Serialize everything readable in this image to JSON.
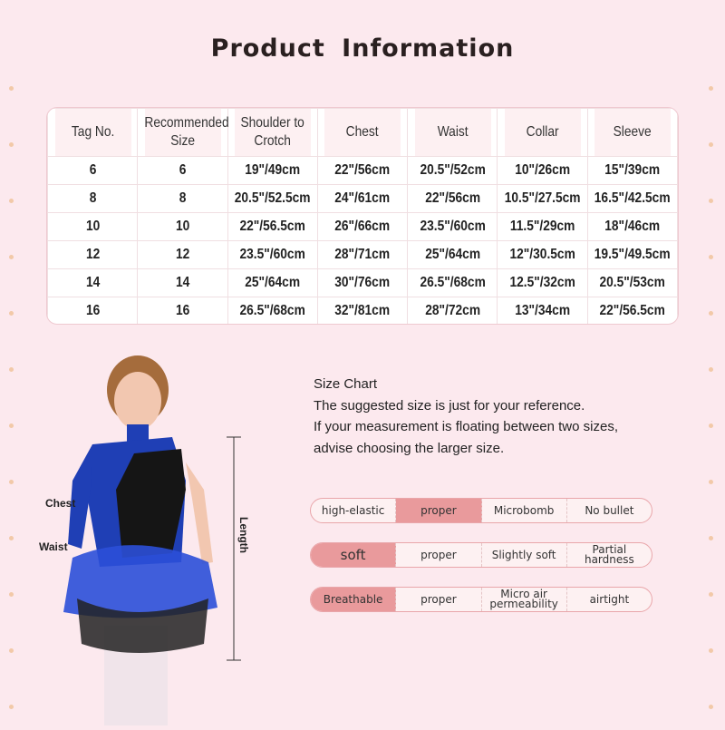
{
  "title": "Product  Information",
  "table": {
    "headers": [
      "Tag No.",
      "Recommended Size",
      "Shoulder to Crotch",
      "Chest",
      "Waist",
      "Collar",
      "Sleeve"
    ],
    "rows": [
      [
        "6",
        "6",
        "19\"/49cm",
        "22\"/56cm",
        "20.5\"/52cm",
        "10\"/26cm",
        "15\"/39cm"
      ],
      [
        "8",
        "8",
        "20.5\"/52.5cm",
        "24\"/61cm",
        "22\"/56cm",
        "10.5\"/27.5cm",
        "16.5\"/42.5cm"
      ],
      [
        "10",
        "10",
        "22\"/56.5cm",
        "26\"/66cm",
        "23.5\"/60cm",
        "11.5\"/29cm",
        "18\"/46cm"
      ],
      [
        "12",
        "12",
        "23.5\"/60cm",
        "28\"/71cm",
        "25\"/64cm",
        "12\"/30.5cm",
        "19.5\"/49.5cm"
      ],
      [
        "14",
        "14",
        "25\"/64cm",
        "30\"/76cm",
        "26.5\"/68cm",
        "12.5\"/32cm",
        "20.5\"/53cm"
      ],
      [
        "16",
        "16",
        "26.5\"/68cm",
        "32\"/81cm",
        "28\"/72cm",
        "13\"/34cm",
        "22\"/56.5cm"
      ]
    ]
  },
  "info": {
    "lines": [
      "Size Chart",
      "The suggested size is just for your reference.",
      "If your measurement is floating between two sizes,",
      "advise choosing the larger size."
    ]
  },
  "figure": {
    "chest_label": "Chest",
    "waist_label": "Waist",
    "length_label": "Length"
  },
  "attributes": [
    {
      "options": [
        "high-elastic",
        "proper",
        "Microbomb",
        "No bullet"
      ],
      "selected": 1
    },
    {
      "options": [
        "soft",
        "proper",
        "Slightly soft",
        "Partial hardness"
      ],
      "selected": 0
    },
    {
      "options": [
        "Breathable",
        "proper",
        "Micro air permeability",
        "airtight"
      ],
      "selected": 0
    }
  ],
  "colors": {
    "background": "#fce9ee",
    "highlight": "#e99a9c",
    "border": "#e9a6aa",
    "costume_blue": "#1f3fb5"
  }
}
